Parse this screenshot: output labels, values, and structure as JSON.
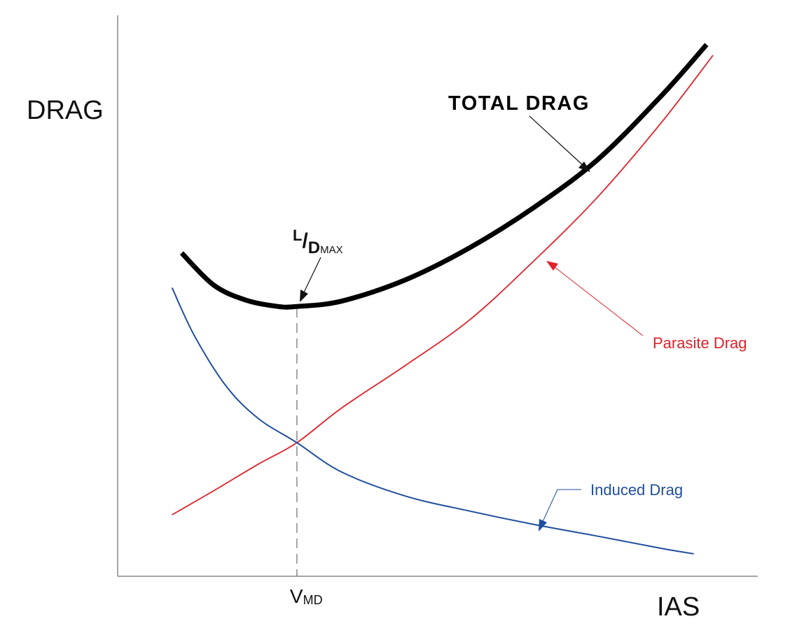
{
  "chart_data": {
    "type": "line",
    "title": "",
    "ylabel": "DRAG",
    "xlabel": "IAS",
    "grid": false,
    "x_marker": {
      "label_main": "V",
      "label_sub": "MD",
      "x": 2.8
    },
    "minimum_point_label": {
      "main_l": "L",
      "slash": "/",
      "main_d": "D",
      "sub": "MAX"
    },
    "xlim": [
      0,
      10
    ],
    "ylim": [
      0,
      10
    ],
    "series": [
      {
        "name": "TOTAL DRAG",
        "color": "#000000",
        "x": [
          1.0,
          1.5,
          2.0,
          2.5,
          2.8,
          3.5,
          4.5,
          5.5,
          6.5,
          7.5,
          8.5,
          9.2
        ],
        "y": [
          6.05,
          5.45,
          5.17,
          5.05,
          5.05,
          5.15,
          5.55,
          6.15,
          6.9,
          7.8,
          9.0,
          9.95
        ]
      },
      {
        "name": "Parasite Drag",
        "color": "#e0222b",
        "x": [
          0.85,
          1.5,
          2.2,
          2.8,
          3.5,
          4.5,
          5.5,
          6.5,
          7.5,
          8.5,
          9.3
        ],
        "y": [
          1.15,
          1.6,
          2.1,
          2.5,
          3.15,
          3.95,
          4.8,
          5.9,
          7.1,
          8.5,
          9.75
        ]
      },
      {
        "name": "Induced Drag",
        "color": "#1f4e9e",
        "x": [
          0.85,
          1.2,
          1.7,
          2.2,
          2.8,
          3.5,
          4.5,
          5.5,
          6.5,
          7.5,
          8.5,
          9.0
        ],
        "y": [
          5.4,
          4.5,
          3.55,
          2.95,
          2.5,
          1.95,
          1.5,
          1.22,
          0.97,
          0.75,
          0.52,
          0.42
        ]
      }
    ],
    "annotations": [
      {
        "text": "TOTAL DRAG",
        "series": "TOTAL DRAG",
        "target_x": 7.5
      },
      {
        "text": "Parasite Drag",
        "series": "Parasite Drag",
        "target_x": 6.8
      },
      {
        "text": "Induced Drag",
        "series": "Induced Drag",
        "target_x": 6.7
      }
    ]
  }
}
